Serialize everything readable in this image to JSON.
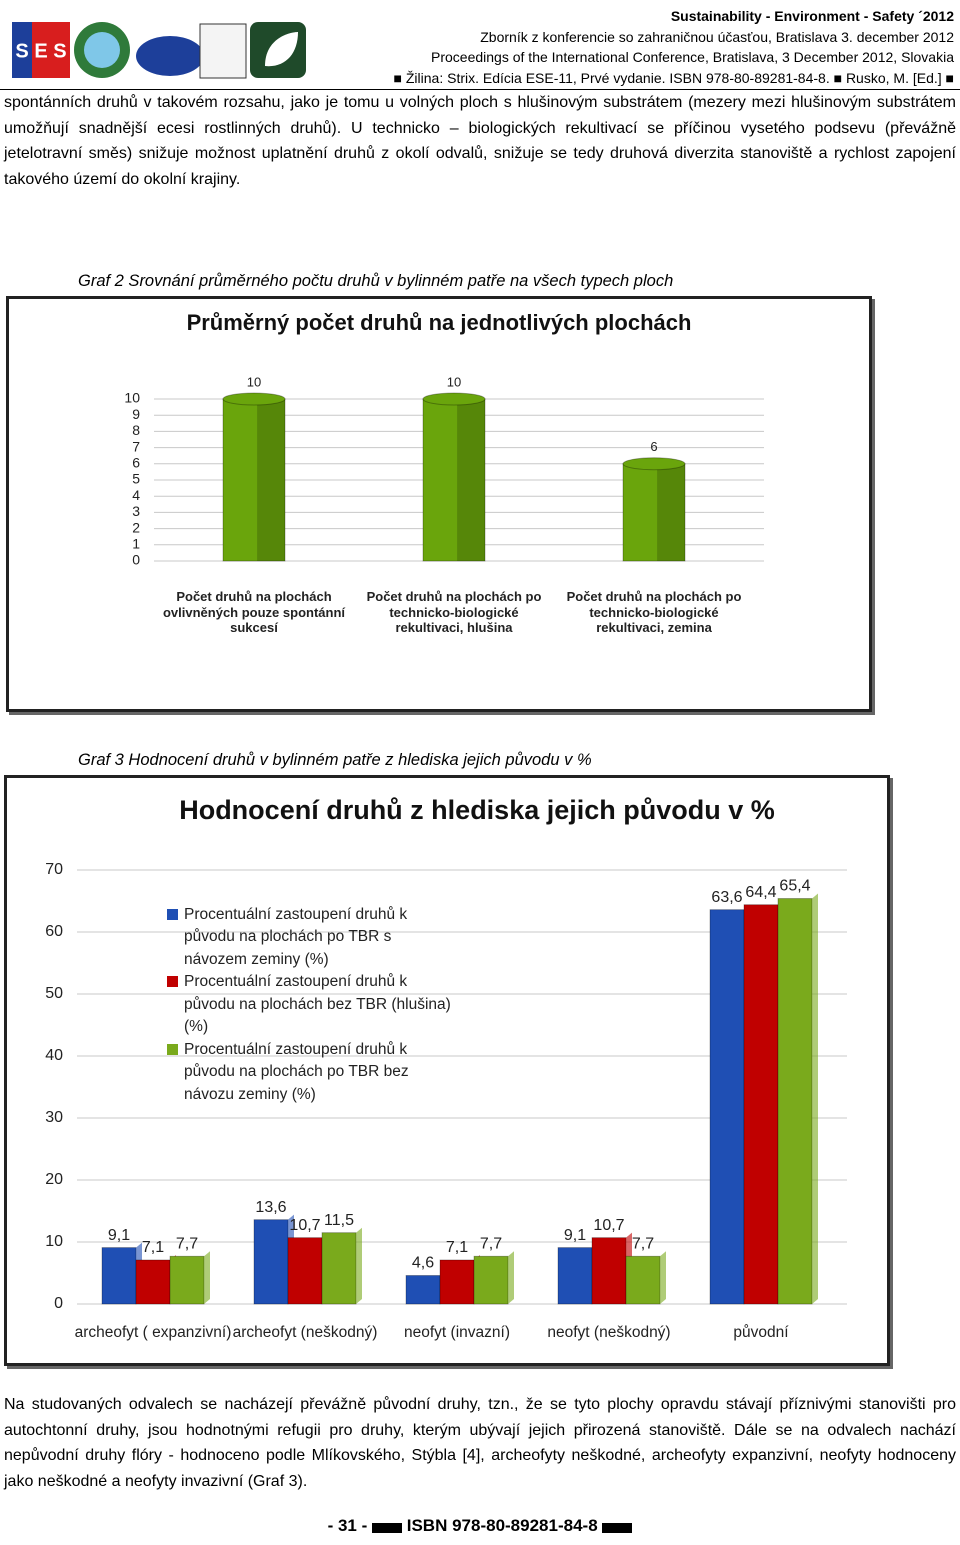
{
  "header": {
    "logo": "S E S",
    "lines": [
      "Sustainability - Environment - Safety ´2012",
      "Zborník z konferencie so zahraničnou účasťou, Bratislava 3. december 2012",
      "Proceedings of the International Conference, Bratislava, 3 December 2012, Slovakia",
      "■ Žilina: Strix. Edícia ESE-11, Prvé vydanie. ISBN 978-80-89281-84-8. ■ Rusko, M. [Ed.] ■"
    ]
  },
  "paragraphs": [
    "spontánních druhů v takovém rozsahu, jako je tomu u volných ploch s hlušinovým substrátem (mezery mezi hlušinovým substrátem umožňují snadnější ecesi rostlinných druhů). U technicko – biologických rekultivací se příčinou vysetého podsevu (převážně jetelotravní směs) snižuje možnost uplatnění druhů z okolí odvalů, snižuje se tedy druhová diverzita stanoviště a rychlost zapojení takového území do okolní krajiny.",
    "Na studovaných odvalech se nacházejí převážně původní druhy, tzn., že se tyto plochy opravdu stávají příznivými stanovišti pro autochtonní druhy, jsou hodnotnými refugii pro druhy, kterým ubývají jejich přirozená stanoviště. Dále se na odvalech nachází nepůvodní druhy flóry - hodnoceno podle Mlíkovského, Stýbla [4], archeofyty neškodné, archeofyty expanzivní, neofyty hodnoceny jako neškodné a neofyty invazivní (Graf 3)."
  ],
  "captions": [
    "Graf 2 Srovnání průměrného počtu druhů v bylinném patře na všech typech ploch",
    "Graf 3 Hodnocení druhů v bylinném patře z hlediska jejich původu v %"
  ],
  "chart_data": [
    {
      "type": "bar",
      "title": "Průměrný počet druhů na jednotlivých plochách",
      "categories": [
        "Počet druhů na plochách ovlivněných pouze spontánní sukcesí",
        "Počet druhů na plochách po technicko-biologické rekultivaci, hlušina",
        "Počet druhů na plochách po technicko-biologické rekultivaci, zemina"
      ],
      "values": [
        10,
        10,
        6
      ],
      "color": "#6aa50c",
      "ylim": [
        0,
        10
      ],
      "yticks": [
        0,
        1,
        2,
        3,
        4,
        5,
        6,
        7,
        8,
        9,
        10
      ],
      "grid": true
    },
    {
      "type": "bar",
      "title": "Hodnocení druhů z hlediska jejich původu v %",
      "categories": [
        "archeofyt ( expanzivní)",
        "archeofyt (neškodný)",
        "neofyt (invazní)",
        "neofyt (neškodný)",
        "původní"
      ],
      "series": [
        {
          "name": "Procentuální zastoupení druhů k původu na plochách po TBR s návozem zeminy (%)",
          "color": "#1f4fb4",
          "values": [
            9.1,
            13.6,
            4.6,
            9.1,
            63.6
          ],
          "value_labels": [
            "9,1",
            "13,6",
            "4,6",
            "9,1",
            "63,6"
          ]
        },
        {
          "name": "Procentuální zastoupení druhů k původu na plochách bez TBR (hlušina) (%)",
          "color": "#c00000",
          "values": [
            7.1,
            10.7,
            7.1,
            10.7,
            64.4
          ],
          "value_labels": [
            "7,1",
            "10,7",
            "7,1",
            "10,7",
            "64,4"
          ]
        },
        {
          "name": "Procentuální zastoupení druhů k původu na plochách po TBR bez návozu zeminy (%)",
          "color": "#7aaa1c",
          "values": [
            7.7,
            11.5,
            7.7,
            7.7,
            65.4
          ],
          "value_labels": [
            "7,7",
            "11,5",
            "7,7",
            "7,7",
            "65,4"
          ]
        }
      ],
      "ylim": [
        0,
        70
      ],
      "yticks": [
        0,
        10,
        20,
        30,
        40,
        50,
        60,
        70
      ],
      "grid": true,
      "legend": "upper left"
    }
  ],
  "footer": {
    "page": "- 31 -",
    "isbn": "ISBN 978-80-89281-84-8"
  }
}
